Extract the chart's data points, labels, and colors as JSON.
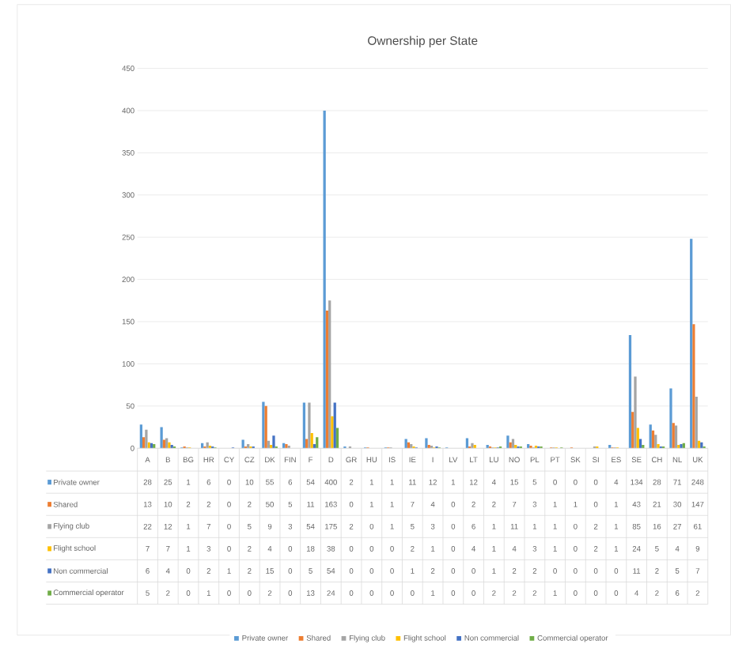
{
  "chart_data": {
    "type": "bar",
    "title": "Ownership per State",
    "categories": [
      "A",
      "B",
      "BG",
      "HR",
      "CY",
      "CZ",
      "DK",
      "FIN",
      "F",
      "D",
      "GR",
      "HU",
      "IS",
      "IE",
      "I",
      "LV",
      "LT",
      "LU",
      "NO",
      "PL",
      "PT",
      "SK",
      "SI",
      "ES",
      "SE",
      "CH",
      "NL",
      "UK"
    ],
    "series": [
      {
        "name": "Private owner",
        "color": "#5b9bd5",
        "values": [
          28,
          25,
          1,
          6,
          0,
          10,
          55,
          6,
          54,
          400,
          2,
          1,
          1,
          11,
          12,
          1,
          12,
          4,
          15,
          5,
          0,
          0,
          0,
          4,
          134,
          28,
          71,
          248
        ]
      },
      {
        "name": "Shared",
        "color": "#ed7d31",
        "values": [
          13,
          10,
          2,
          2,
          0,
          2,
          50,
          5,
          11,
          163,
          0,
          1,
          1,
          7,
          4,
          0,
          2,
          2,
          7,
          3,
          1,
          1,
          0,
          1,
          43,
          21,
          30,
          147
        ]
      },
      {
        "name": "Flying club",
        "color": "#a5a5a5",
        "values": [
          22,
          12,
          1,
          7,
          0,
          5,
          9,
          3,
          54,
          175,
          2,
          0,
          1,
          5,
          3,
          0,
          6,
          1,
          11,
          1,
          1,
          0,
          2,
          1,
          85,
          16,
          27,
          61
        ]
      },
      {
        "name": "Flight school",
        "color": "#ffc000",
        "values": [
          7,
          7,
          1,
          3,
          0,
          2,
          4,
          0,
          18,
          38,
          0,
          0,
          0,
          2,
          1,
          0,
          4,
          1,
          4,
          3,
          1,
          0,
          2,
          1,
          24,
          5,
          4,
          9
        ]
      },
      {
        "name": "Non commercial",
        "color": "#4472c4",
        "values": [
          6,
          4,
          0,
          2,
          1,
          2,
          15,
          0,
          5,
          54,
          0,
          0,
          0,
          1,
          2,
          0,
          0,
          1,
          2,
          2,
          0,
          0,
          0,
          0,
          11,
          2,
          5,
          7
        ]
      },
      {
        "name": "Commercial operator",
        "color": "#70ad47",
        "values": [
          5,
          2,
          0,
          1,
          0,
          0,
          2,
          0,
          13,
          24,
          0,
          0,
          0,
          0,
          1,
          0,
          0,
          2,
          2,
          2,
          1,
          0,
          0,
          0,
          4,
          2,
          6,
          2
        ]
      }
    ],
    "ylim": [
      0,
      450
    ],
    "yticks": [
      0,
      50,
      100,
      150,
      200,
      250,
      300,
      350,
      400,
      450
    ],
    "grid": "y",
    "legend": "bottom",
    "data_labels": true
  }
}
